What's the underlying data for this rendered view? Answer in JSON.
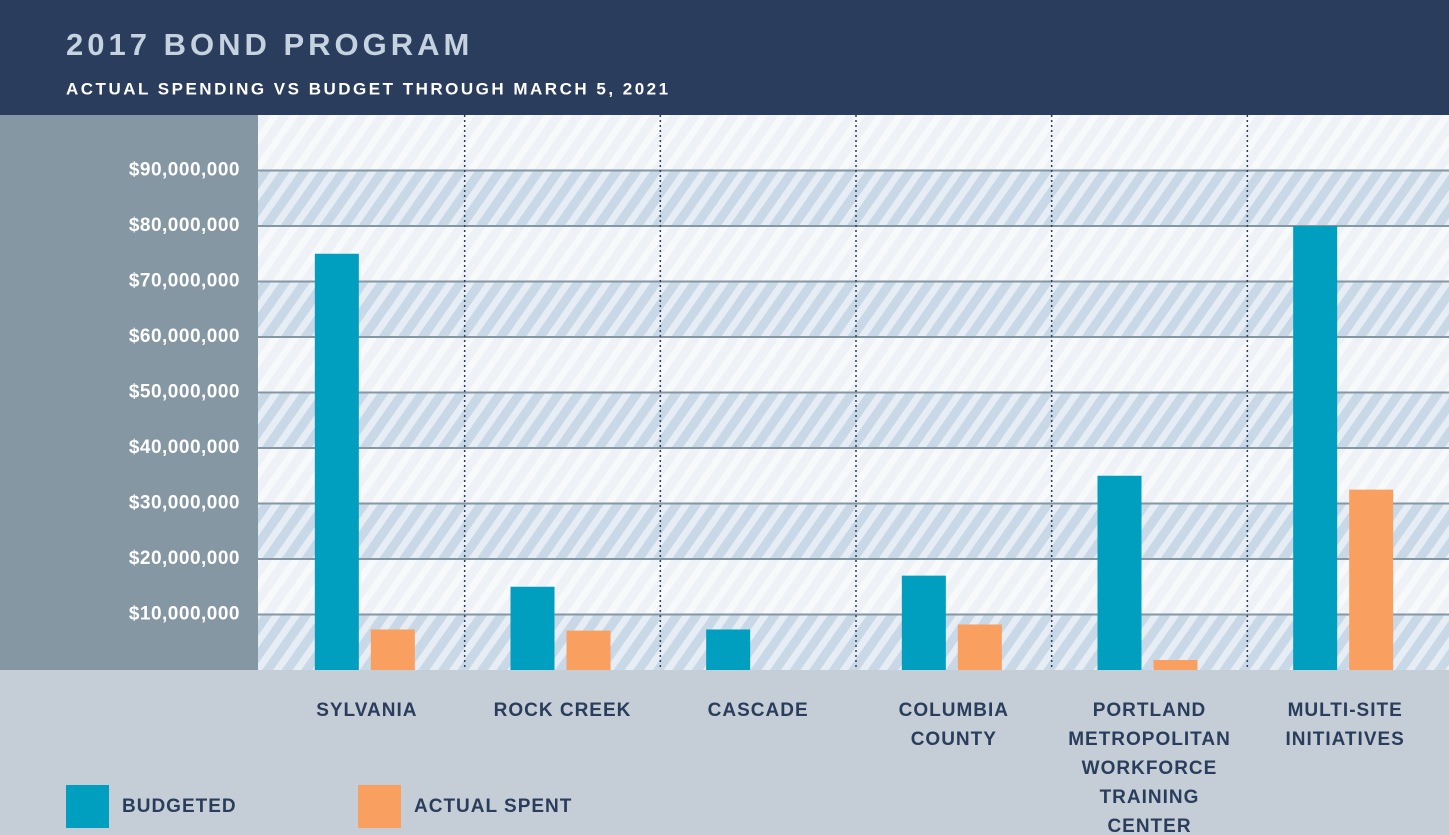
{
  "chart_data": {
    "type": "bar",
    "title": "2017 BOND PROGRAM",
    "subtitle": "ACTUAL SPENDING VS BUDGET THROUGH MARCH 5, 2021",
    "categories": [
      "SYLVANIA",
      "ROCK CREEK",
      "CASCADE",
      "COLUMBIA COUNTY",
      "PORTLAND METROPOLITAN WORKFORCE TRAINING CENTER",
      "MULTI-SITE INITIATIVES"
    ],
    "series": [
      {
        "name": "BUDGETED",
        "color": "#009fc0",
        "values": [
          75000000,
          15000000,
          7300000,
          17000000,
          35000000,
          80000000
        ]
      },
      {
        "name": "ACTUAL SPENT",
        "color": "#f9a061",
        "values": [
          7300000,
          7100000,
          0,
          8200000,
          1800000,
          32500000
        ]
      }
    ],
    "ylim": [
      0,
      100000000
    ],
    "yticks": [
      {
        "value": 10000000,
        "label": "$10,000,000"
      },
      {
        "value": 20000000,
        "label": "$20,000,000"
      },
      {
        "value": 30000000,
        "label": "$30,000,000"
      },
      {
        "value": 40000000,
        "label": "$40,000,000"
      },
      {
        "value": 50000000,
        "label": "$50,000,000"
      },
      {
        "value": 60000000,
        "label": "$60,000,000"
      },
      {
        "value": 70000000,
        "label": "$70,000,000"
      },
      {
        "value": 80000000,
        "label": "$80,000,000"
      },
      {
        "value": 90000000,
        "label": "$90,000,000"
      }
    ],
    "grid": true
  }
}
